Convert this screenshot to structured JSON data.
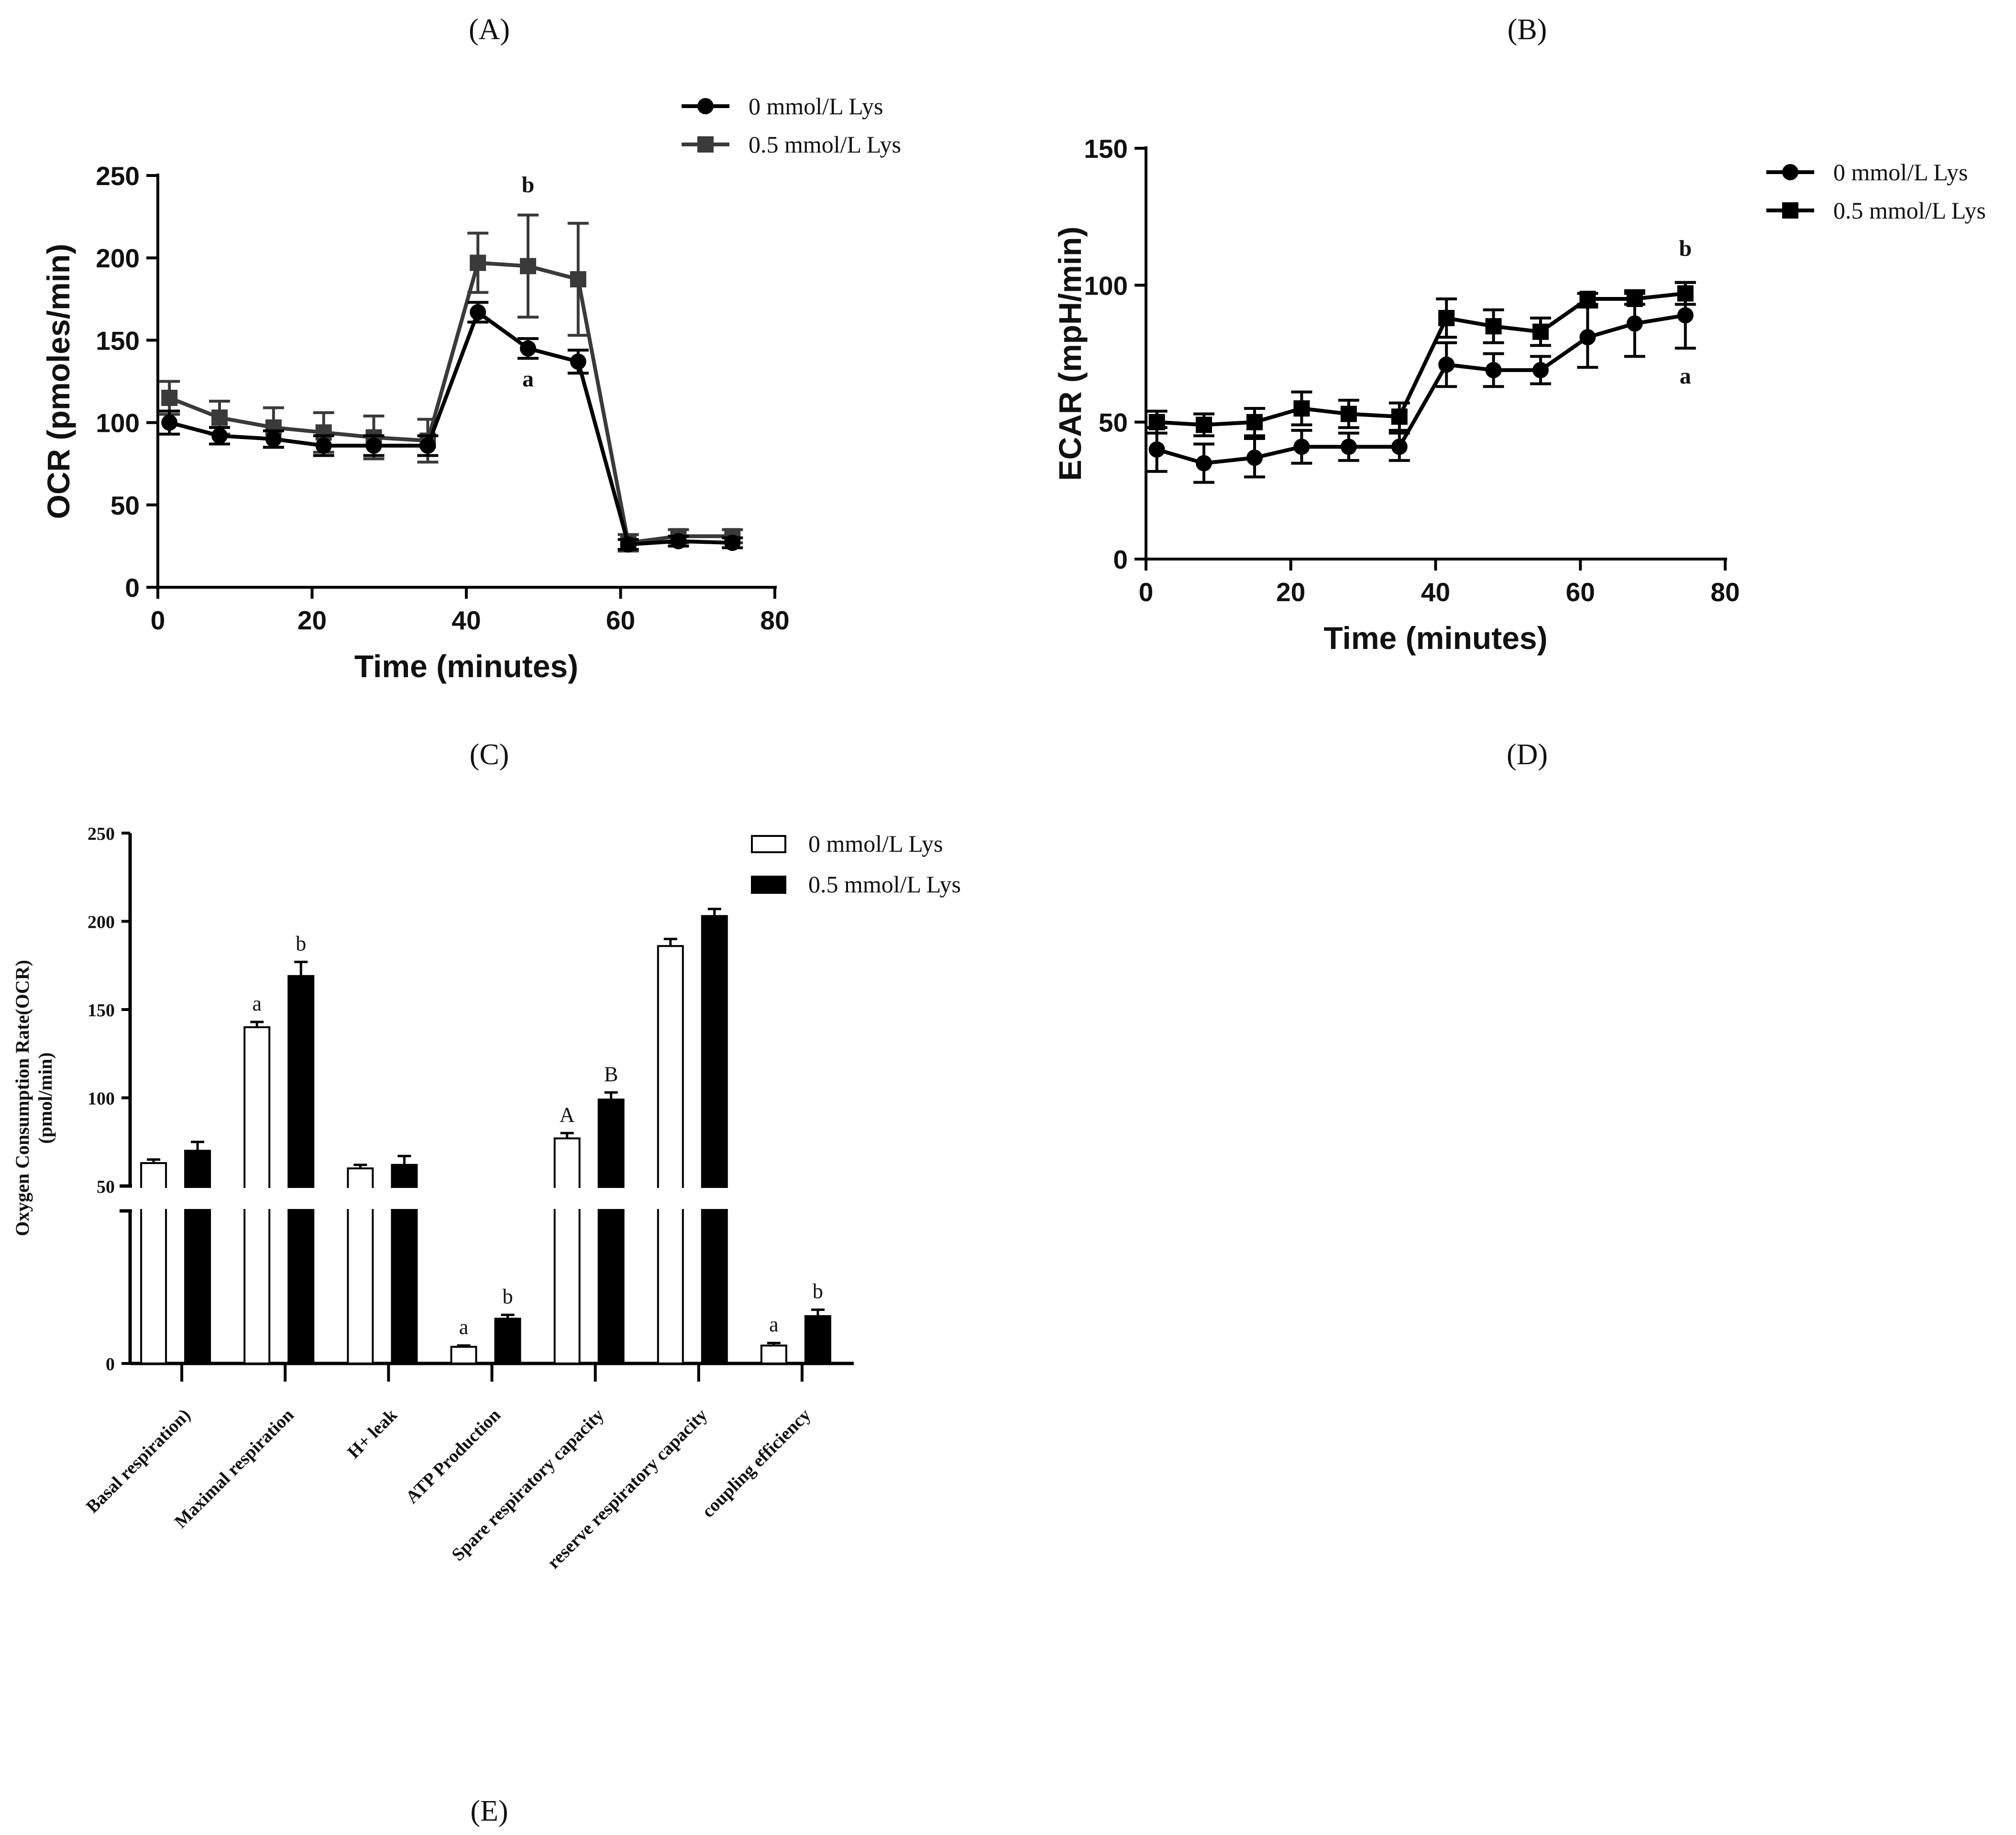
{
  "panel_labels": [
    "(A)",
    "(B)",
    "(C)",
    "(D)",
    "(E)"
  ],
  "chart_data": [
    {
      "id": "A",
      "type": "line",
      "xlabel": "Time (minutes)",
      "ylabel": "OCR (pmoles/min)",
      "xlim": [
        0,
        80
      ],
      "ylim": [
        0,
        250
      ],
      "xticks": [
        0,
        20,
        40,
        60,
        80
      ],
      "yticks": [
        0,
        50,
        100,
        150,
        200,
        250
      ],
      "x": [
        1.5,
        8,
        15,
        21.5,
        28,
        35,
        41.5,
        48,
        54.5,
        61,
        67.5,
        74.5
      ],
      "series": [
        {
          "name": "0  mmol/L Lys",
          "marker": "circle",
          "color": "#000000",
          "values": [
            100,
            92,
            90,
            86,
            86,
            86,
            167,
            145,
            137,
            26,
            28,
            27
          ],
          "errors": [
            7,
            5,
            5,
            6,
            6,
            6,
            6,
            6,
            7,
            3,
            3,
            3
          ]
        },
        {
          "name": "0.5  mmol/L Lys",
          "marker": "square",
          "color": "#3a3a3a",
          "values": [
            115,
            103,
            97,
            94,
            91,
            89,
            197,
            195,
            187,
            27,
            31,
            31
          ],
          "errors": [
            10,
            10,
            12,
            12,
            13,
            13,
            18,
            31,
            34,
            5,
            4,
            4
          ]
        }
      ],
      "annotations": [
        {
          "text": "b",
          "x": 48
        },
        {
          "text": "a",
          "x": 48
        }
      ]
    },
    {
      "id": "B",
      "type": "line",
      "xlabel": "Time (minutes)",
      "ylabel": "ECAR (mpH/min)",
      "xlim": [
        0,
        80
      ],
      "ylim": [
        0,
        150
      ],
      "xticks": [
        0,
        20,
        40,
        60,
        80
      ],
      "yticks": [
        0,
        50,
        100,
        150
      ],
      "x": [
        1.5,
        8,
        15,
        21.5,
        28,
        35,
        41.5,
        48,
        54.5,
        61,
        67.5,
        74.5
      ],
      "series": [
        {
          "name": "0  mmol/L Lys",
          "marker": "circle",
          "color": "#000000",
          "values": [
            40,
            35,
            37,
            41,
            41,
            41,
            71,
            69,
            69,
            81,
            86,
            89
          ],
          "errors": [
            8,
            7,
            7,
            6,
            5,
            5,
            8,
            6,
            5,
            11,
            12,
            12
          ]
        },
        {
          "name": "0.5  mmol/L Lys",
          "marker": "square",
          "color": "#000000",
          "values": [
            50,
            49,
            50,
            55,
            53,
            52,
            88,
            85,
            83,
            95,
            95,
            97
          ],
          "errors": [
            4,
            4,
            5,
            6,
            5,
            5,
            7,
            6,
            5,
            2,
            2,
            4
          ]
        }
      ],
      "annotations": [
        {
          "text": "b",
          "x": 74.5
        },
        {
          "text": "a",
          "x": 74.5
        }
      ]
    },
    {
      "id": "E",
      "type": "bar",
      "ylabel": "Oxygen Consumption Rate(OCR) (pmol/min)",
      "ylabel_lines": [
        "Oxygen Consumption Rate(OCR)",
        "(pmol/min)"
      ],
      "yticks_upper": [
        50,
        100,
        150,
        200,
        250
      ],
      "yticks_lower": [
        0
      ],
      "upper_range": [
        50,
        250
      ],
      "broken_axis": true,
      "categories": [
        "Basal respiration)",
        "Maximal respiration",
        "H+ leak",
        "ATP Production",
        "Spare respiratory capacity",
        "reserve respiratory capacity",
        "coupling efficiency"
      ],
      "series": [
        {
          "name": "0  mmol/L Lys",
          "fill": "#ffffff",
          "values": [
            63,
            140,
            60,
            13,
            77,
            186,
            14
          ],
          "errors": [
            2,
            3,
            2,
            1,
            3,
            4,
            2
          ]
        },
        {
          "name": "0.5  mmol/L Lys",
          "fill": "#000000",
          "values": [
            70,
            169,
            62,
            35,
            99,
            203,
            37
          ],
          "errors": [
            5,
            8,
            5,
            3,
            4,
            4,
            5
          ]
        }
      ],
      "sig_labels": [
        {
          "category": 1,
          "series": 0,
          "text": "a"
        },
        {
          "category": 1,
          "series": 1,
          "text": "b"
        },
        {
          "category": 3,
          "series": 0,
          "text": "a"
        },
        {
          "category": 3,
          "series": 1,
          "text": "b"
        },
        {
          "category": 4,
          "series": 0,
          "text": "A"
        },
        {
          "category": 4,
          "series": 1,
          "text": "B"
        },
        {
          "category": 6,
          "series": 0,
          "text": "a"
        },
        {
          "category": 6,
          "series": 1,
          "text": "b"
        }
      ]
    }
  ]
}
